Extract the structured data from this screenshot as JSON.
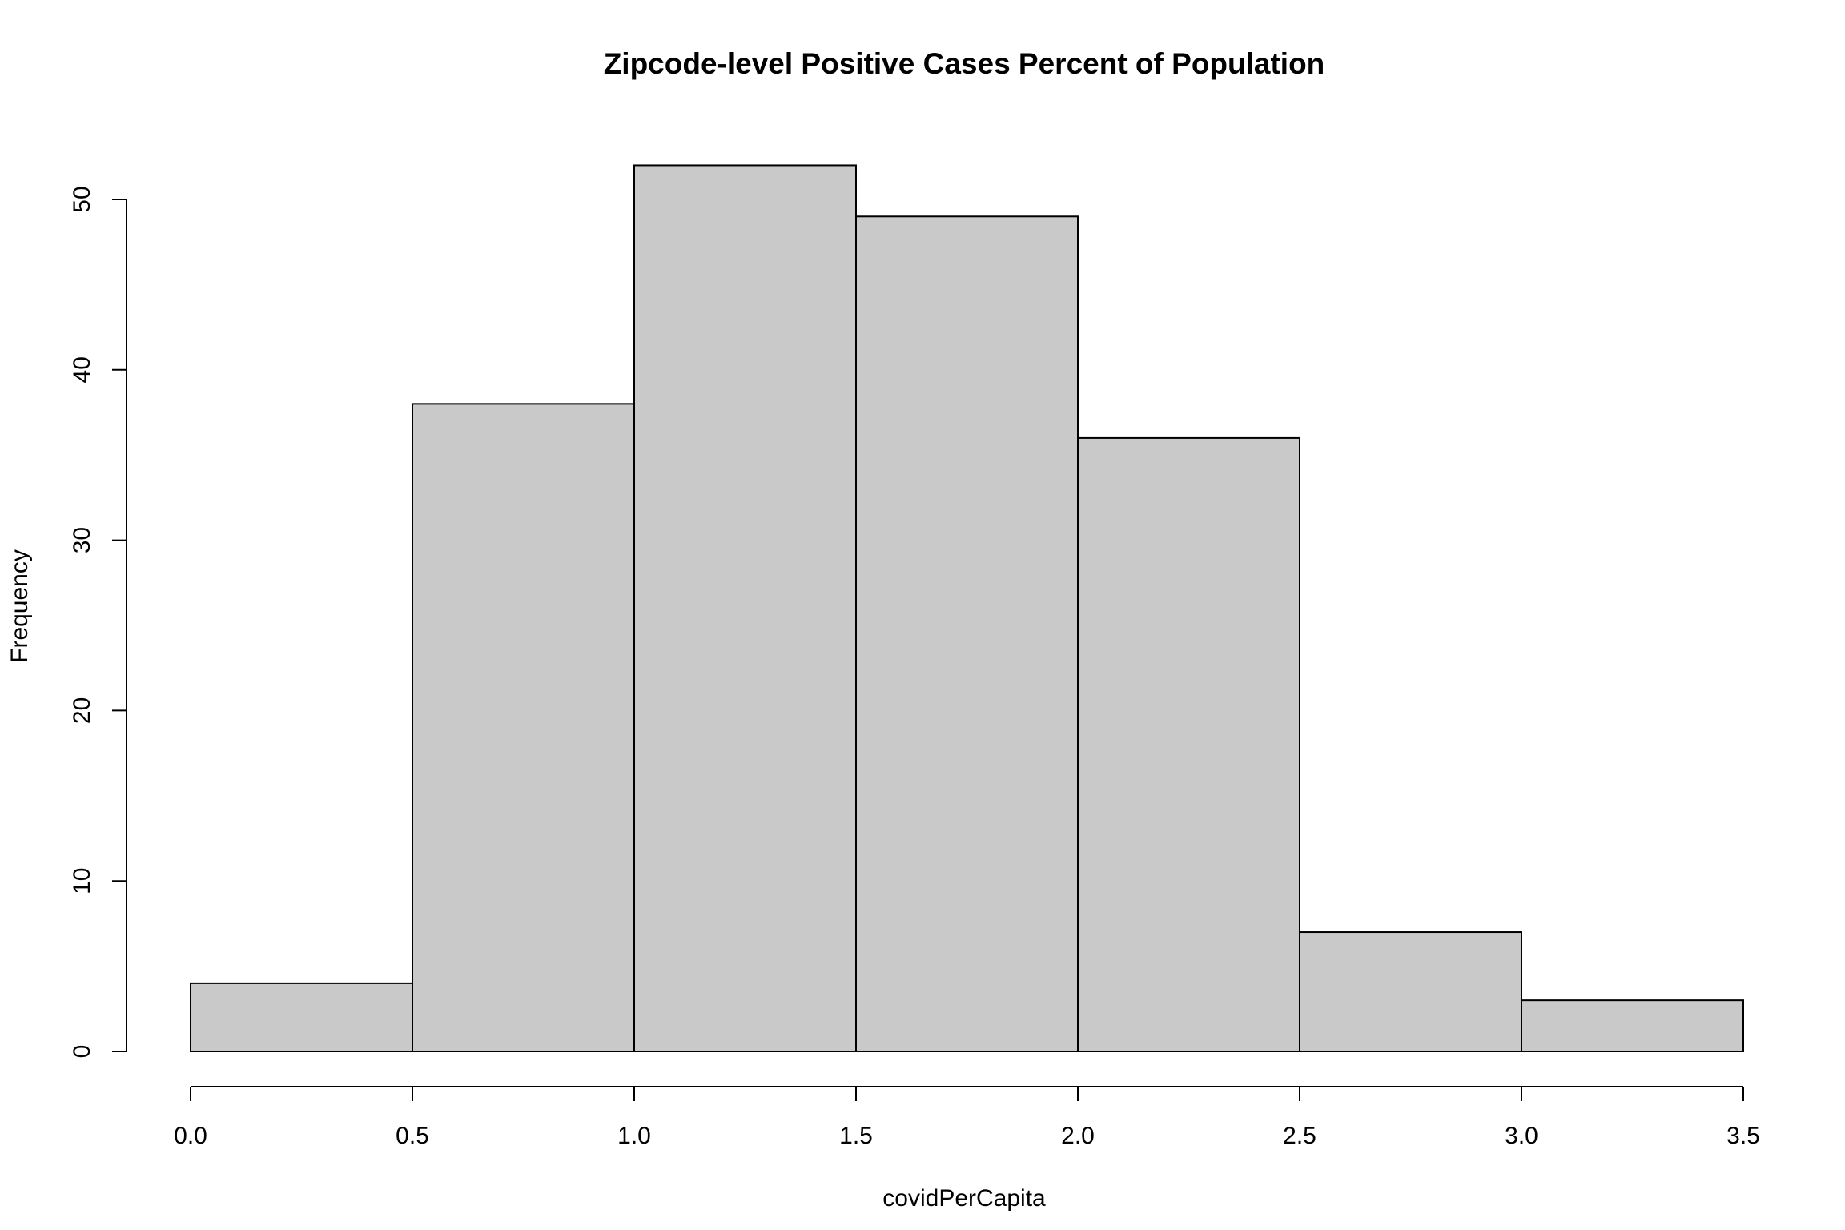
{
  "chart_data": {
    "type": "bar",
    "title": "Zipcode-level Positive Cases Percent of Population",
    "xlabel": "covidPerCapita",
    "ylabel": "Frequency",
    "bins": [
      {
        "start": 0.0,
        "end": 0.5,
        "value": 4
      },
      {
        "start": 0.5,
        "end": 1.0,
        "value": 38
      },
      {
        "start": 1.0,
        "end": 1.5,
        "value": 52
      },
      {
        "start": 1.5,
        "end": 2.0,
        "value": 49
      },
      {
        "start": 2.0,
        "end": 2.5,
        "value": 36
      },
      {
        "start": 2.5,
        "end": 3.0,
        "value": 7
      },
      {
        "start": 3.0,
        "end": 3.5,
        "value": 3
      }
    ],
    "values": [
      4,
      38,
      52,
      49,
      36,
      7,
      3
    ],
    "xlim": [
      0,
      3.5
    ],
    "ylim": [
      0,
      50
    ],
    "x_ticks": [
      "0.0",
      "0.5",
      "1.0",
      "1.5",
      "2.0",
      "2.5",
      "3.0",
      "3.5"
    ],
    "y_ticks": [
      "0",
      "10",
      "20",
      "30",
      "40",
      "50"
    ],
    "bar_fill": "#c9c9c9",
    "bar_stroke": "#000000",
    "grid": false,
    "legend": "none"
  }
}
